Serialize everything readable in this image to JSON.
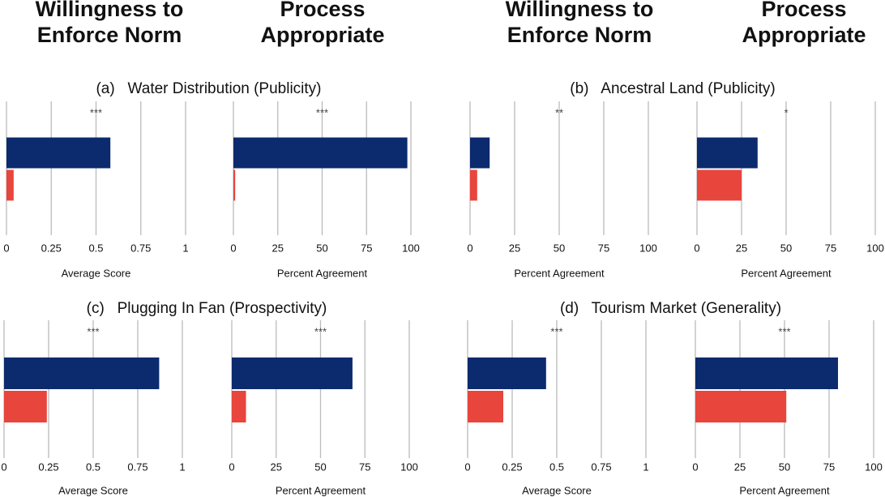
{
  "headers": [
    "Willingness to Enforce Norm",
    "Process Appropriate",
    "Willingness to Enforce Norm",
    "Process Appropriate"
  ],
  "chart_data": [
    {
      "type": "bar",
      "title": "(a)   Water Distribution (Publicity)",
      "annotation": "***",
      "xlabel": "Average Score",
      "categories": [
        null
      ],
      "series": [
        {
          "color": "#0c2a6e",
          "values": [
            0.58
          ]
        },
        {
          "color": "#e8453c",
          "values": [
            0.04
          ]
        }
      ],
      "xlim": [
        0,
        1
      ],
      "xticks": [
        0,
        0.25,
        0.5,
        0.75,
        1
      ],
      "grid": true
    },
    {
      "type": "bar",
      "annotation": "***",
      "xlabel": "Percent Agreement",
      "categories": [
        null
      ],
      "series": [
        {
          "color": "#0c2a6e",
          "values": [
            98
          ]
        },
        {
          "color": "#e8453c",
          "values": [
            1
          ]
        }
      ],
      "xlim": [
        0,
        100
      ],
      "xticks": [
        0,
        25,
        50,
        75,
        100
      ],
      "grid": true
    },
    {
      "type": "bar",
      "title": "(b)   Ancestral Land (Publicity)",
      "annotation": "**",
      "xlabel": "Percent Agreement",
      "categories": [
        null
      ],
      "series": [
        {
          "color": "#0c2a6e",
          "values": [
            11
          ]
        },
        {
          "color": "#e8453c",
          "values": [
            4
          ]
        }
      ],
      "xlim": [
        0,
        100
      ],
      "xticks": [
        0,
        25,
        50,
        75,
        100
      ],
      "grid": true
    },
    {
      "type": "bar",
      "annotation": "*",
      "xlabel": "Percent Agreement",
      "categories": [
        null
      ],
      "series": [
        {
          "color": "#0c2a6e",
          "values": [
            34
          ]
        },
        {
          "color": "#e8453c",
          "values": [
            25
          ]
        }
      ],
      "xlim": [
        0,
        100
      ],
      "xticks": [
        0,
        25,
        50,
        75,
        100
      ],
      "grid": true
    },
    {
      "type": "bar",
      "title": "(c)   Plugging In Fan (Prospectivity)",
      "annotation": "***",
      "xlabel": "Average Score",
      "categories": [
        null
      ],
      "series": [
        {
          "color": "#0c2a6e",
          "values": [
            0.87
          ]
        },
        {
          "color": "#e8453c",
          "values": [
            0.24
          ]
        }
      ],
      "xlim": [
        0,
        1
      ],
      "xticks": [
        0,
        0.25,
        0.5,
        0.75,
        1
      ],
      "grid": true
    },
    {
      "type": "bar",
      "annotation": "***",
      "xlabel": "Percent Agreement",
      "categories": [
        null
      ],
      "series": [
        {
          "color": "#0c2a6e",
          "values": [
            68
          ]
        },
        {
          "color": "#e8453c",
          "values": [
            8
          ]
        }
      ],
      "xlim": [
        0,
        100
      ],
      "xticks": [
        0,
        25,
        50,
        75,
        100
      ],
      "grid": true
    },
    {
      "type": "bar",
      "title": "(d)   Tourism Market (Generality)",
      "annotation": "***",
      "xlabel": "Average Score",
      "categories": [
        null
      ],
      "series": [
        {
          "color": "#0c2a6e",
          "values": [
            0.44
          ]
        },
        {
          "color": "#e8453c",
          "values": [
            0.2
          ]
        }
      ],
      "xlim": [
        0,
        1
      ],
      "xticks": [
        0,
        0.25,
        0.5,
        0.75,
        1
      ],
      "grid": true
    },
    {
      "type": "bar",
      "annotation": "***",
      "xlabel": "Percent Agreement",
      "categories": [
        null
      ],
      "series": [
        {
          "color": "#0c2a6e",
          "values": [
            80
          ]
        },
        {
          "color": "#e8453c",
          "values": [
            51
          ]
        }
      ],
      "xlim": [
        0,
        100
      ],
      "xticks": [
        0,
        25,
        50,
        75,
        100
      ],
      "grid": true
    }
  ]
}
